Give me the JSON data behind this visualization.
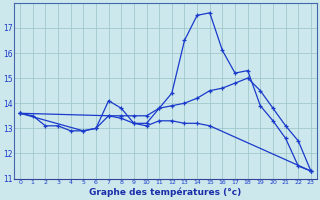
{
  "xlabel": "Graphe des températures (°c)",
  "bg_color": "#cce8ec",
  "line_color": "#1a3acc",
  "grid_color": "#a0c8cc",
  "xlim": [
    -0.5,
    23.5
  ],
  "ylim": [
    11,
    18
  ],
  "yticks": [
    11,
    12,
    13,
    14,
    15,
    16,
    17
  ],
  "xticks": [
    0,
    1,
    2,
    3,
    4,
    5,
    6,
    7,
    8,
    9,
    10,
    11,
    12,
    13,
    14,
    15,
    16,
    17,
    18,
    19,
    20,
    21,
    22,
    23
  ],
  "curve1_x": [
    0,
    1,
    2,
    3,
    4,
    5,
    6,
    7,
    8,
    9,
    10,
    11,
    12,
    13,
    14,
    15,
    16,
    17,
    18,
    19,
    20,
    21,
    22,
    23
  ],
  "curve1_y": [
    13.6,
    13.5,
    13.1,
    13.1,
    12.9,
    12.9,
    13.0,
    14.1,
    13.8,
    13.2,
    13.2,
    13.8,
    14.4,
    16.5,
    17.5,
    17.6,
    16.1,
    15.2,
    15.3,
    13.9,
    13.3,
    12.6,
    11.5,
    11.3
  ],
  "curve2_x": [
    0,
    7,
    8,
    9,
    10,
    11,
    12,
    13,
    14,
    15,
    16,
    17,
    18,
    19,
    20,
    21,
    22,
    23
  ],
  "curve2_y": [
    13.6,
    13.5,
    13.5,
    13.5,
    13.5,
    13.8,
    13.9,
    14.0,
    14.2,
    14.5,
    14.6,
    14.8,
    15.0,
    14.5,
    13.8,
    13.1,
    12.5,
    11.3
  ],
  "curve3_x": [
    0,
    5,
    6,
    7,
    8,
    9,
    10,
    11,
    12,
    13,
    14,
    15,
    23
  ],
  "curve3_y": [
    13.6,
    12.9,
    13.0,
    13.5,
    13.4,
    13.2,
    13.1,
    13.3,
    13.3,
    13.2,
    13.2,
    13.1,
    11.3
  ],
  "marker": "+"
}
